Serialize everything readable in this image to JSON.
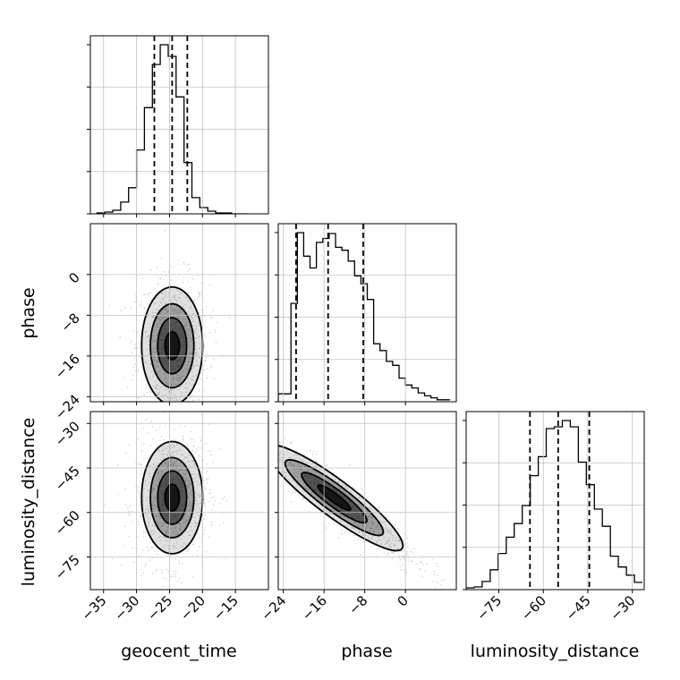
{
  "chart_data": {
    "type": "corner",
    "parameters": [
      "geocent_time",
      "phase",
      "luminosity_distance"
    ],
    "axis_labels": {
      "x": [
        "geocent_time",
        "phase",
        "luminosity_distance"
      ],
      "y": [
        "",
        "phase",
        "luminosity_distance"
      ]
    },
    "axis_ranges": {
      "geocent_time": [
        -37,
        -10
      ],
      "phase": [
        -25,
        10
      ],
      "luminosity_distance": [
        -86,
        -26
      ]
    },
    "ticks": {
      "geocent_time": [
        -35,
        -30,
        -25,
        -20,
        -15
      ],
      "phase": [
        -24,
        -16,
        -8,
        0
      ],
      "luminosity_distance": [
        -75,
        -60,
        -45,
        -30
      ]
    },
    "quantiles": {
      "geocent_time": [
        -27.3,
        -24.6,
        -22.3
      ],
      "phase": [
        -21.5,
        -15.2,
        -8.3
      ],
      "luminosity_distance": [
        -64.5,
        -55.0,
        -44.5
      ]
    },
    "histograms": {
      "geocent_time": {
        "edges": [
          -36,
          -34.8,
          -33.6,
          -32.4,
          -31.2,
          -30,
          -28.8,
          -27.6,
          -26.4,
          -25.2,
          -24,
          -22.8,
          -21.6,
          -20.4,
          -19.2,
          -18,
          -16.8,
          -15.6,
          -14.4,
          -13.2
        ],
        "counts": [
          1,
          2,
          4,
          13,
          29,
          71,
          118,
          166,
          188,
          175,
          130,
          57,
          18,
          7,
          3,
          1,
          1,
          0,
          0
        ]
      },
      "phase": {
        "edges": [
          -25,
          -23.75,
          -22.5,
          -21.25,
          -20,
          -18.75,
          -17.5,
          -16.25,
          -15,
          -13.75,
          -12.5,
          -11.25,
          -10,
          -8.75,
          -7.5,
          -6.25,
          -5,
          -3.75,
          -2.5,
          -1.25,
          0,
          1.25,
          2.5,
          3.75,
          5,
          6.25,
          7.5,
          8.75
        ],
        "counts": [
          8,
          8,
          100,
          172,
          148,
          136,
          162,
          166,
          171,
          157,
          154,
          143,
          128,
          120,
          104,
          59,
          52,
          41,
          37,
          24,
          17,
          14,
          9,
          6,
          4,
          2,
          2
        ]
      },
      "luminosity_distance": {
        "edges": [
          -86,
          -83.3,
          -80.6,
          -77.9,
          -75.2,
          -72.5,
          -69.8,
          -67.1,
          -64.4,
          -61.7,
          -59,
          -56.3,
          -53.6,
          -50.9,
          -48.2,
          -45.5,
          -42.8,
          -40.1,
          -37.4,
          -34.7,
          -32,
          -29.3,
          -26.6
        ],
        "counts": [
          2,
          3,
          9,
          22,
          40,
          58,
          73,
          93,
          126,
          147,
          178,
          180,
          187,
          180,
          141,
          116,
          89,
          70,
          37,
          25,
          16,
          8
        ]
      }
    },
    "grid": true,
    "contour_levels": [
      "0.5-sigma",
      "1-sigma",
      "1.5-sigma",
      "2-sigma"
    ],
    "colors": {
      "line": "#000000",
      "scatter": "#9a9a9a",
      "grid": "#c0c0c0",
      "density": "#000000"
    }
  }
}
